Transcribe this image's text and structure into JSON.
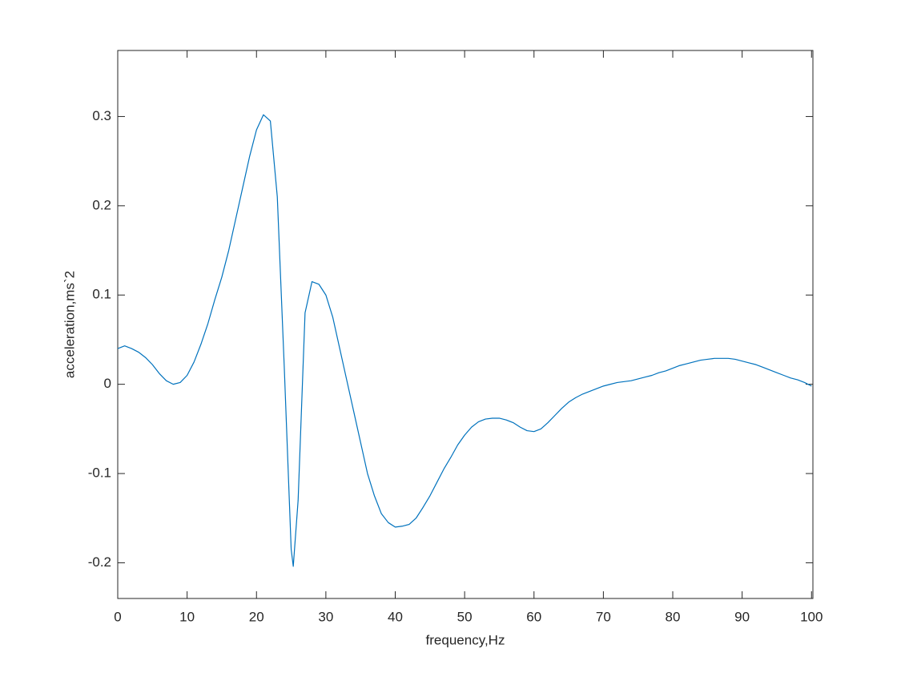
{
  "chart_data": {
    "type": "line",
    "xlabel": "frequency,Hz",
    "ylabel": "acceleration,ms`2",
    "x": [
      0,
      1,
      2,
      3,
      4,
      5,
      6,
      7,
      8,
      9,
      10,
      11,
      12,
      13,
      14,
      15,
      16,
      17,
      18,
      19,
      20,
      21,
      22,
      23,
      24,
      25,
      25.3,
      26,
      27,
      28,
      29,
      30,
      31,
      32,
      33,
      34,
      35,
      36,
      37,
      38,
      39,
      40,
      41,
      42,
      43,
      44,
      45,
      46,
      47,
      48,
      49,
      50,
      51,
      52,
      53,
      54,
      55,
      56,
      57,
      58,
      59,
      60,
      61,
      62,
      63,
      64,
      65,
      66,
      67,
      68,
      69,
      70,
      71,
      72,
      73,
      74,
      75,
      76,
      77,
      78,
      79,
      80,
      81,
      82,
      83,
      84,
      85,
      86,
      87,
      88,
      89,
      90,
      91,
      92,
      93,
      94,
      95,
      96,
      97,
      98,
      99,
      100
    ],
    "series": [
      {
        "color": "#0072bd",
        "values": [
          0.04,
          0.043,
          0.04,
          0.036,
          0.03,
          0.022,
          0.012,
          0.004,
          0.0,
          0.002,
          0.01,
          0.025,
          0.045,
          0.068,
          0.095,
          0.12,
          0.15,
          0.185,
          0.22,
          0.255,
          0.285,
          0.302,
          0.295,
          0.21,
          0.02,
          -0.185,
          -0.204,
          -0.13,
          0.08,
          0.115,
          0.112,
          0.1,
          0.075,
          0.04,
          0.005,
          -0.03,
          -0.065,
          -0.1,
          -0.125,
          -0.145,
          -0.155,
          -0.16,
          -0.159,
          -0.157,
          -0.15,
          -0.138,
          -0.125,
          -0.11,
          -0.095,
          -0.082,
          -0.068,
          -0.057,
          -0.048,
          -0.042,
          -0.039,
          -0.038,
          -0.038,
          -0.04,
          -0.043,
          -0.048,
          -0.052,
          -0.053,
          -0.05,
          -0.043,
          -0.035,
          -0.027,
          -0.02,
          -0.015,
          -0.011,
          -0.008,
          -0.005,
          -0.002,
          0.0,
          0.002,
          0.003,
          0.004,
          0.006,
          0.008,
          0.01,
          0.013,
          0.015,
          0.018,
          0.021,
          0.023,
          0.025,
          0.027,
          0.028,
          0.029,
          0.029,
          0.029,
          0.028,
          0.026,
          0.024,
          0.022,
          0.019,
          0.016,
          0.013,
          0.01,
          0.007,
          0.005,
          0.002,
          -0.002
        ]
      }
    ],
    "xlim": [
      0,
      100.2
    ],
    "ylim": [
      -0.24,
      0.374
    ],
    "xticks": [
      0,
      10,
      20,
      30,
      40,
      50,
      60,
      70,
      80,
      90,
      100
    ],
    "yticks": [
      -0.2,
      -0.1,
      0,
      0.1,
      0.2,
      0.3
    ],
    "grid": false
  }
}
